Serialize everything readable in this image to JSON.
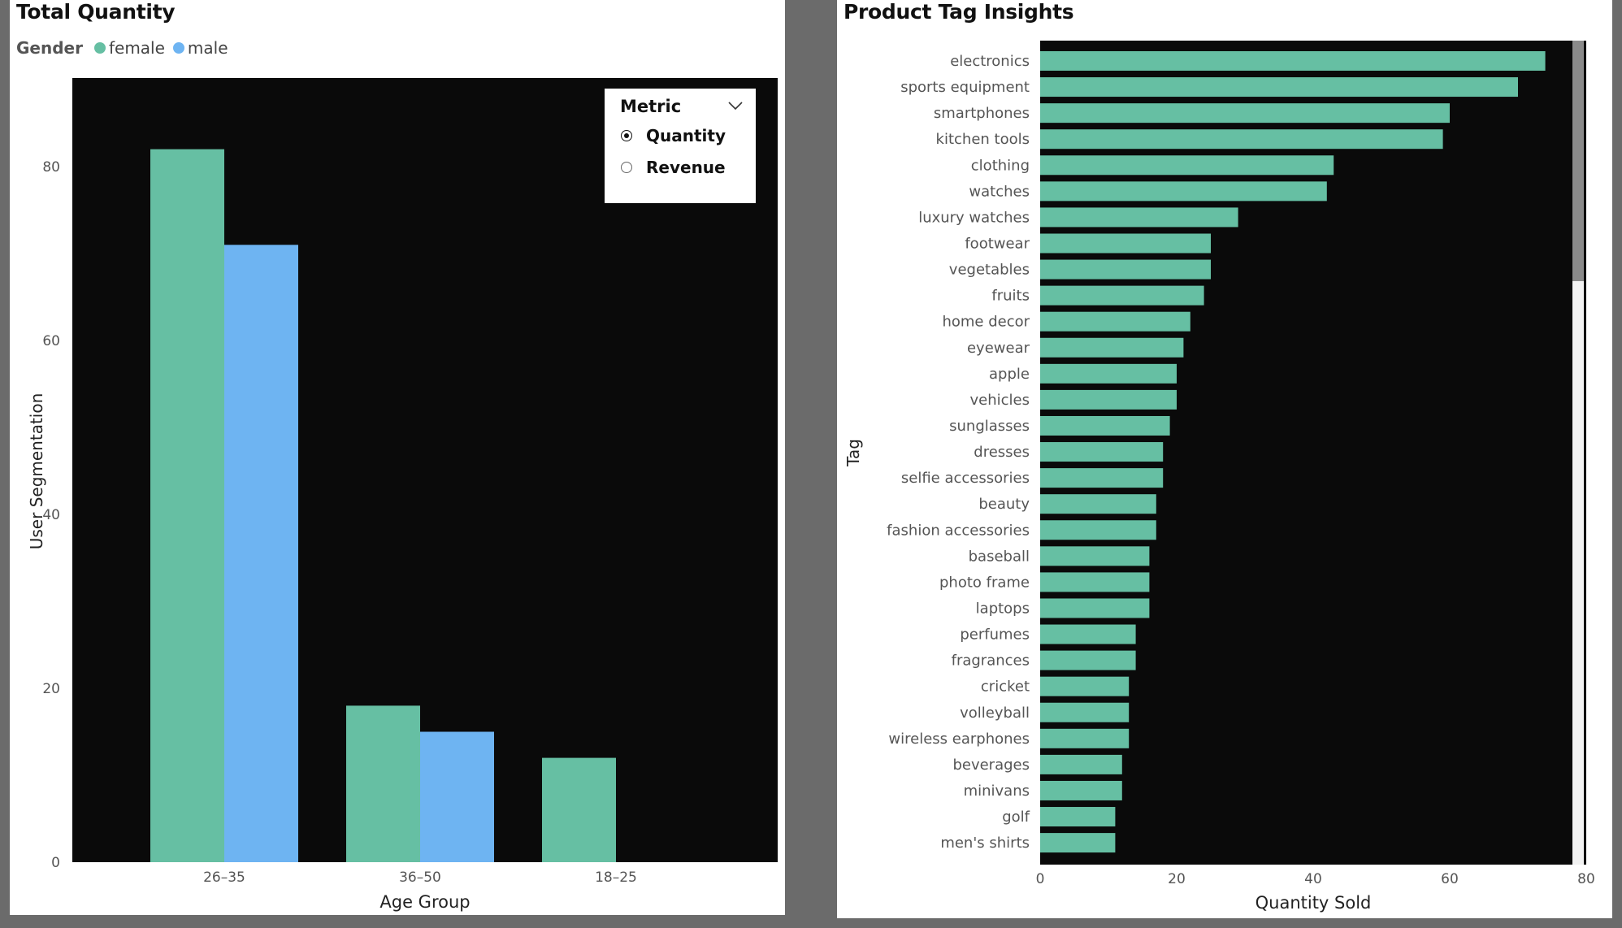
{
  "left_panel": {
    "title": "Total Quantity",
    "legend_title": "Gender",
    "legend_items": [
      {
        "label": "female",
        "color": "#66bfa3"
      },
      {
        "label": "male",
        "color": "#6eb4f2"
      }
    ],
    "slicer": {
      "title": "Metric",
      "options": [
        {
          "label": "Quantity",
          "selected": true
        },
        {
          "label": "Revenue",
          "selected": false
        }
      ]
    }
  },
  "right_panel": {
    "title": "Product Tag Insights"
  },
  "chart_data": [
    {
      "type": "bar",
      "orientation": "vertical",
      "title": "Total Quantity",
      "xlabel": "Age Group",
      "ylabel": "User Segmentation",
      "categories": [
        "26–35",
        "36–50",
        "18–25"
      ],
      "series": [
        {
          "name": "female",
          "color": "#66bfa3",
          "values": [
            82,
            18,
            12
          ]
        },
        {
          "name": "male",
          "color": "#6eb4f2",
          "values": [
            71,
            15,
            0
          ]
        }
      ],
      "ylim": [
        0,
        90
      ],
      "yticks": [
        0,
        20,
        40,
        60,
        80
      ],
      "grid": false,
      "legend_position": "top-left",
      "background": "#0a0a0a"
    },
    {
      "type": "bar",
      "orientation": "horizontal",
      "title": "Product Tag Insights",
      "xlabel": "Quantity Sold",
      "ylabel": "Tag",
      "categories": [
        "electronics",
        "sports equipment",
        "smartphones",
        "kitchen tools",
        "clothing",
        "watches",
        "luxury watches",
        "footwear",
        "vegetables",
        "fruits",
        "home decor",
        "eyewear",
        "apple",
        "vehicles",
        "sunglasses",
        "dresses",
        "selfie accessories",
        "beauty",
        "fashion accessories",
        "baseball",
        "photo frame",
        "laptops",
        "perfumes",
        "fragrances",
        "cricket",
        "volleyball",
        "wireless earphones",
        "beverages",
        "minivans",
        "golf",
        "men's shirts"
      ],
      "series": [
        {
          "name": "",
          "color": "#66bfa3",
          "values": [
            74,
            70,
            60,
            59,
            43,
            42,
            29,
            25,
            25,
            24,
            22,
            21,
            20,
            20,
            19,
            18,
            18,
            17,
            17,
            16,
            16,
            16,
            14,
            14,
            13,
            13,
            13,
            12,
            12,
            11,
            11
          ]
        }
      ],
      "xlim": [
        0,
        80
      ],
      "xticks": [
        0,
        20,
        40,
        60,
        80
      ],
      "grid": false,
      "background": "#0a0a0a"
    }
  ]
}
